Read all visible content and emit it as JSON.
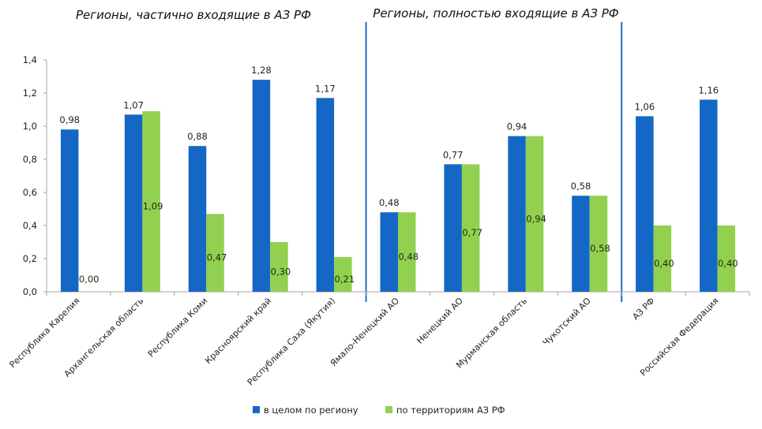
{
  "chart_data": {
    "type": "bar",
    "title": "",
    "xlabel": "",
    "ylabel": "",
    "ylim": [
      0,
      1.4
    ],
    "yticks": [
      "0,0",
      "0,2",
      "0,4",
      "0,6",
      "0,8",
      "1,0",
      "1,2",
      "1,4"
    ],
    "ytick_values": [
      0,
      0.2,
      0.4,
      0.6,
      0.8,
      1.0,
      1.2,
      1.4
    ],
    "grid": false,
    "legend_position": "bottom",
    "group_titles": [
      "Регионы, частично входящие в АЗ РФ",
      "Регионы, полностью входящие в АЗ РФ"
    ],
    "group_separators_after_category_index": [
      4,
      8
    ],
    "categories": [
      "Республика Карелия",
      "Архангельская область",
      "Республика Коми",
      "Красноярский край",
      "Республика Саха (Якутия)",
      "Ямало-Ненецкий АО",
      "Ненецкий АО",
      "Мурманская область",
      "Чукотский АО",
      "АЗ РФ",
      "Российская Федерация"
    ],
    "series": [
      {
        "name": "в целом по региону",
        "color": "#1467C5",
        "values": [
          0.98,
          1.07,
          0.88,
          1.28,
          1.17,
          0.48,
          0.77,
          0.94,
          0.58,
          1.06,
          1.16
        ],
        "labels": [
          "0,98",
          "1,07",
          "0,88",
          "1,28",
          "1,17",
          "0,48",
          "0,77",
          "0,94",
          "0,58",
          "1,06",
          "1,16"
        ]
      },
      {
        "name": "по территориям АЗ РФ",
        "color": "#92D050",
        "values": [
          0.0,
          1.09,
          0.47,
          0.3,
          0.21,
          0.48,
          0.77,
          0.94,
          0.58,
          0.4,
          0.4
        ],
        "labels": [
          "0,00",
          "1,09",
          "0,47",
          "0,30",
          "0,21",
          "0,48",
          "0,77",
          "0,94",
          "0,58",
          "0,40",
          "0,40"
        ]
      }
    ]
  },
  "colors": {
    "separator": "#1F6FC5",
    "axis": "#A6A6A6"
  }
}
